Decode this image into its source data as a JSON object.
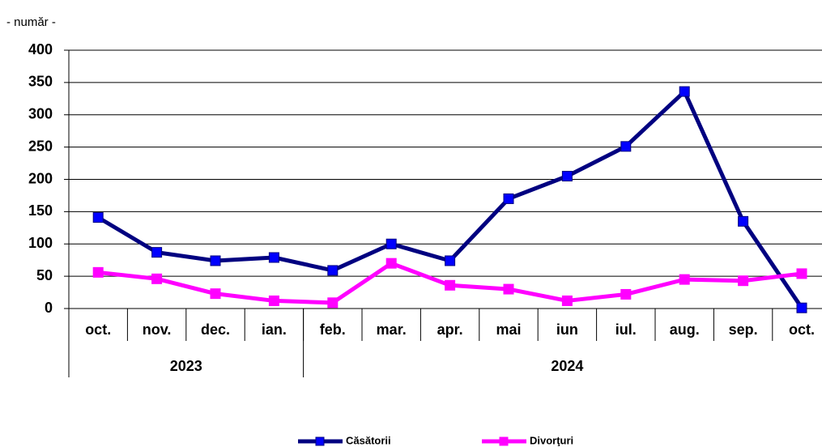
{
  "chart_data": {
    "type": "line",
    "unit_label": "- număr -",
    "groups": [
      {
        "label": "2023",
        "categories": [
          "oct.",
          "nov.",
          "dec.",
          "ian."
        ]
      },
      {
        "label": "2024",
        "categories": [
          "feb.",
          "mar.",
          "apr.",
          "mai",
          "iun",
          "iul.",
          "aug.",
          "sep.",
          "oct."
        ]
      }
    ],
    "series": [
      {
        "name": "Căsătorii",
        "color": "#000080",
        "marker_color": "#0000ff",
        "values": [
          141,
          87,
          74,
          79,
          59,
          100,
          74,
          170,
          205,
          251,
          336,
          135,
          1
        ]
      },
      {
        "name": "Divorţuri",
        "color": "#ff00ff",
        "marker_color": "#ff00ff",
        "values": [
          56,
          46,
          23,
          12,
          9,
          70,
          36,
          30,
          12,
          22,
          45,
          43,
          54
        ]
      }
    ],
    "ylim": [
      0,
      400
    ],
    "yticks": [
      0,
      50,
      100,
      150,
      200,
      250,
      300,
      350,
      400
    ],
    "grid": true,
    "legend": "bottom"
  }
}
